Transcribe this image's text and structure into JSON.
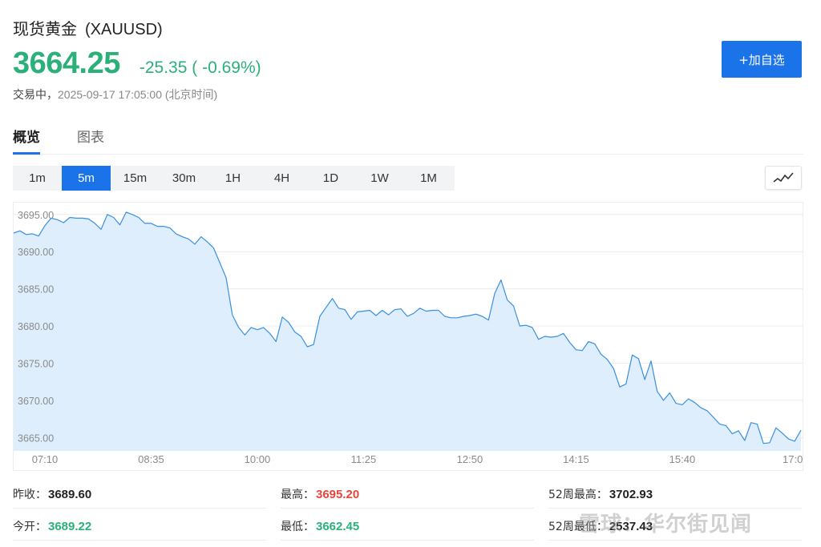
{
  "header": {
    "name": "现货黄金",
    "symbol": "(XAUUSD)",
    "price": "3664.25",
    "change": "-25.35 ( -0.69%)",
    "status_label": "交易中，",
    "timestamp": "2025-09-17 17:05:00 (北京时间)",
    "watch_button": "+加自选"
  },
  "tabs": [
    {
      "label": "概览",
      "active": true
    },
    {
      "label": "图表",
      "active": false
    }
  ],
  "periods": [
    "1m",
    "5m",
    "15m",
    "30m",
    "1H",
    "4H",
    "1D",
    "1W",
    "1M"
  ],
  "active_period": "5m",
  "chart_data": {
    "type": "area",
    "y_ticks": [
      "3695.00",
      "3690.00",
      "3685.00",
      "3680.00",
      "3675.00",
      "3670.00",
      "3665.00"
    ],
    "ylim": [
      3663.2,
      3696.7
    ],
    "x_ticks": [
      {
        "label": "07:10",
        "i": 5
      },
      {
        "label": "08:35",
        "i": 22
      },
      {
        "label": "10:00",
        "i": 39
      },
      {
        "label": "11:25",
        "i": 56
      },
      {
        "label": "12:50",
        "i": 73
      },
      {
        "label": "14:15",
        "i": 90
      },
      {
        "label": "15:40",
        "i": 107
      },
      {
        "label": "17:0",
        "i": 124
      }
    ],
    "values": [
      3692.5,
      3692.8,
      3692.3,
      3692.4,
      3692.1,
      3693.5,
      3694.5,
      3694.3,
      3693.9,
      3694.6,
      3694.5,
      3694.5,
      3694.4,
      3693.8,
      3693.0,
      3695.0,
      3694.6,
      3693.6,
      3695.3,
      3695.0,
      3694.6,
      3693.8,
      3693.8,
      3693.4,
      3693.4,
      3693.2,
      3692.4,
      3692.0,
      3691.7,
      3691.0,
      3692.0,
      3691.3,
      3690.5,
      3688.5,
      3686.5,
      3681.5,
      3679.8,
      3678.8,
      3679.8,
      3679.5,
      3679.8,
      3679.0,
      3677.9,
      3681.2,
      3680.5,
      3679.2,
      3678.6,
      3677.2,
      3677.5,
      3681.3,
      3682.5,
      3683.7,
      3682.4,
      3682.2,
      3680.9,
      3681.9,
      3682.0,
      3682.1,
      3681.4,
      3682.1,
      3681.5,
      3682.2,
      3682.3,
      3681.3,
      3681.7,
      3682.4,
      3682.0,
      3682.1,
      3682.1,
      3681.3,
      3681.1,
      3681.1,
      3681.3,
      3681.4,
      3681.6,
      3681.3,
      3680.8,
      3684.4,
      3686.2,
      3683.5,
      3682.7,
      3680.0,
      3680.1,
      3679.8,
      3678.2,
      3678.6,
      3678.5,
      3678.6,
      3679.0,
      3677.8,
      3676.8,
      3676.7,
      3677.9,
      3677.6,
      3676.2,
      3675.5,
      3674.3,
      3671.8,
      3672.2,
      3676.1,
      3675.6,
      3672.8,
      3675.3,
      3671.2,
      3670.0,
      3671.0,
      3669.6,
      3669.4,
      3670.2,
      3669.7,
      3669.0,
      3668.6,
      3667.7,
      3666.8,
      3666.6,
      3665.5,
      3665.9,
      3664.6,
      3667.0,
      3666.8,
      3664.2,
      3664.3,
      3666.3,
      3665.6,
      3664.8,
      3664.5,
      3666.0
    ],
    "line_color": "#3a8fe0",
    "fill_color": "#deeefc",
    "grid": true
  },
  "stats": {
    "prev_close_label": "昨收：",
    "prev_close": "3689.60",
    "high_label": "最高：",
    "high": "3695.20",
    "wk52_high_label": "52周最高：",
    "wk52_high": "3702.93",
    "open_label": "今开：",
    "open": "3689.22",
    "low_label": "最低：",
    "low": "3662.45",
    "wk52_low_label": "52周最低：",
    "wk52_low": "2537.43"
  },
  "watermark": "雪球：华尔街见闻"
}
